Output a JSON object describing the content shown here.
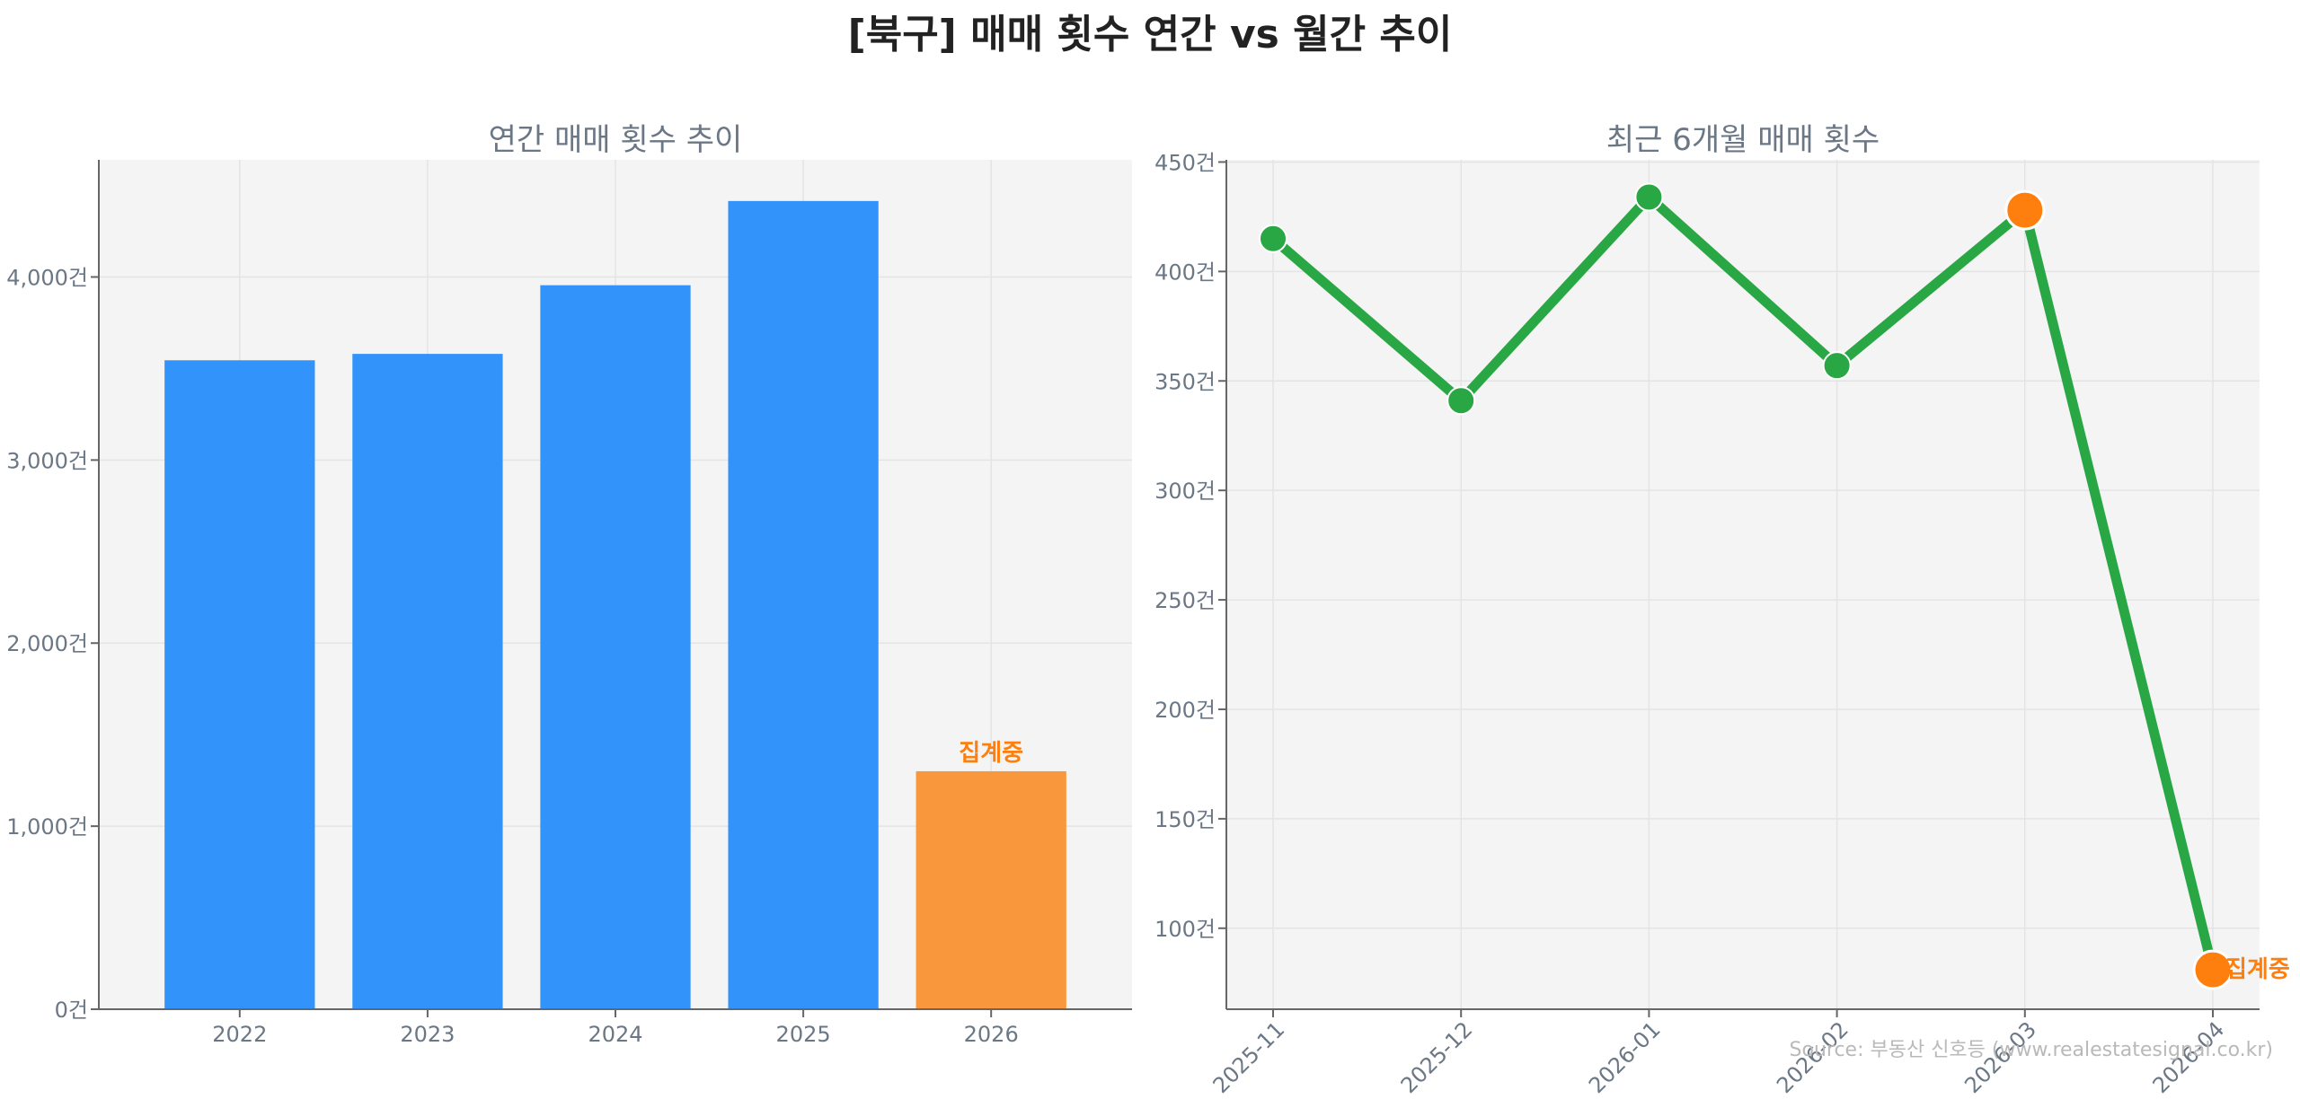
{
  "title": "[북구] 매매 횟수 연간 vs 월간 추이",
  "source": "Source: 부동산 신호등 (www.realestatesignal.co.kr)",
  "colors": {
    "bar": "#3293fb",
    "bar_current": "#f9973d",
    "line": "#2aa745",
    "marker": "#2aa745",
    "marker_highlight": "#ff7f0e",
    "note": "#ff7f0e",
    "panel_bg": "#f4f4f4"
  },
  "chart_data": [
    {
      "type": "bar",
      "title": "연간 매매 횟수 추이",
      "categories": [
        "2022",
        "2023",
        "2024",
        "2025",
        "2026"
      ],
      "values": [
        3545,
        3580,
        3955,
        4415,
        1300
      ],
      "highlight_index": 4,
      "annotation": {
        "index": 4,
        "text": "집계중"
      },
      "ylim": [
        0,
        4640
      ],
      "yticks": [
        0,
        1000,
        2000,
        3000,
        4000
      ],
      "ytick_labels": [
        "0건",
        "1,000건",
        "2,000건",
        "3,000건",
        "4,000건"
      ],
      "grid": true,
      "xlabel": "",
      "ylabel": ""
    },
    {
      "type": "line",
      "title": "최근 6개월 매매 횟수",
      "x": [
        "2025-11",
        "2025-12",
        "2026-01",
        "2026-02",
        "2026-03",
        "2026-04"
      ],
      "values": [
        415,
        341,
        434,
        357,
        428,
        81
      ],
      "highlight_indices": [
        4,
        5
      ],
      "annotation": {
        "index": 5,
        "text": "집계중"
      },
      "ylim": [
        63,
        451
      ],
      "yticks": [
        100,
        150,
        200,
        250,
        300,
        350,
        400,
        450
      ],
      "ytick_labels": [
        "100건",
        "150건",
        "200건",
        "250건",
        "300건",
        "350건",
        "400건",
        "450건"
      ],
      "grid": true,
      "xlabel": "",
      "ylabel": ""
    }
  ]
}
